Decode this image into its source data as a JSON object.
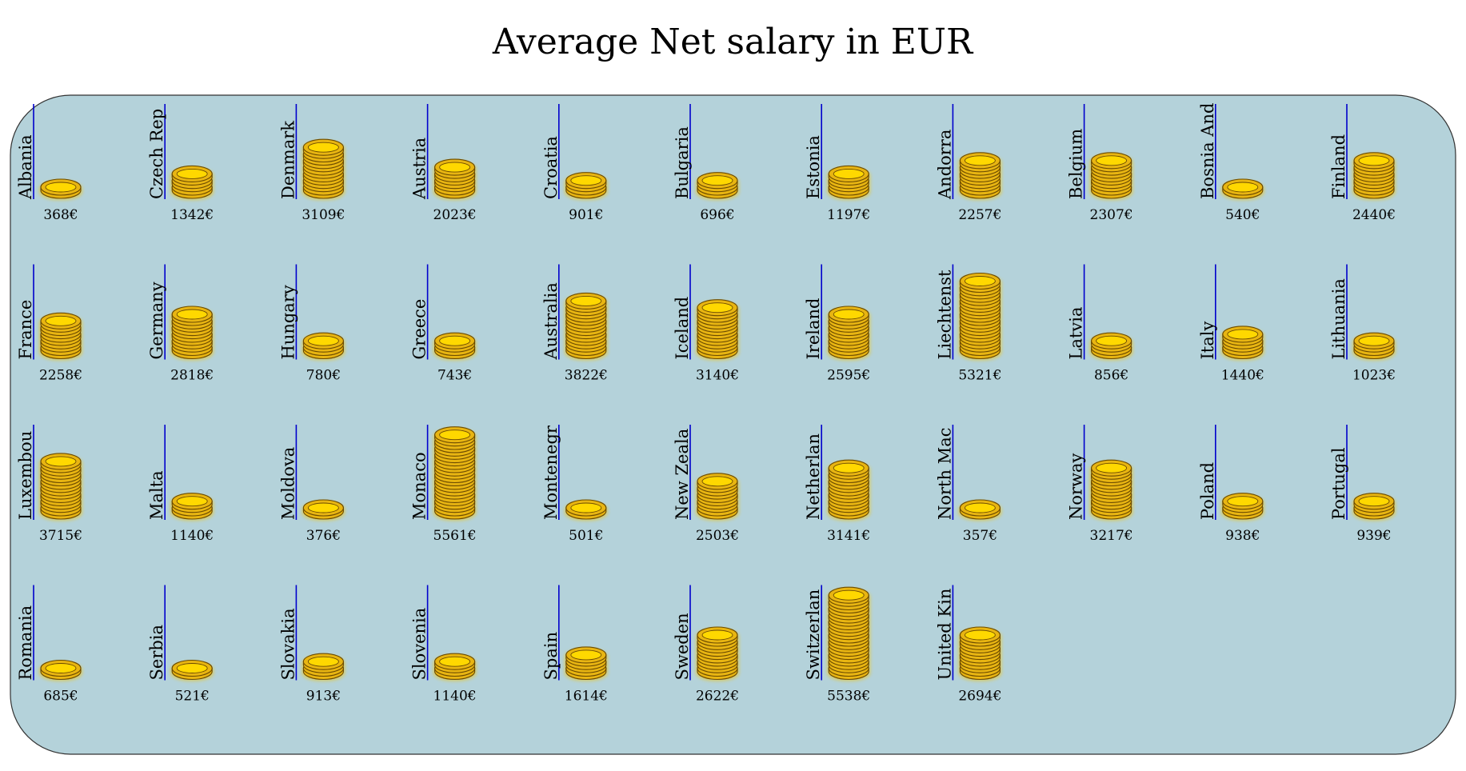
{
  "chart_data": {
    "type": "pictogram",
    "title": "Average Net salary in EUR",
    "value_suffix": "€",
    "columns": 11,
    "colors": {
      "panel": "#b4d2da",
      "panel_border": "#333333",
      "axis_line": "#0000cc",
      "coin_fill": "#e8b512",
      "coin_top": "#ffd800",
      "coin_edge": "#6b4a00",
      "coin_glow": "#f4c400"
    },
    "countries": [
      {
        "name": "Albania",
        "value": 368
      },
      {
        "name": "Czech Rep",
        "value": 1342
      },
      {
        "name": "Denmark",
        "value": 3109
      },
      {
        "name": "Austria",
        "value": 2023
      },
      {
        "name": "Croatia",
        "value": 901
      },
      {
        "name": "Bulgaria",
        "value": 696
      },
      {
        "name": "Estonia",
        "value": 1197
      },
      {
        "name": "Andorra",
        "value": 2257
      },
      {
        "name": "Belgium",
        "value": 2307
      },
      {
        "name": "Bosnia And",
        "value": 540
      },
      {
        "name": "Finland",
        "value": 2440
      },
      {
        "name": "France",
        "value": 2258
      },
      {
        "name": "Germany",
        "value": 2818
      },
      {
        "name": "Hungary",
        "value": 780
      },
      {
        "name": "Greece",
        "value": 743
      },
      {
        "name": "Australia",
        "value": 3822
      },
      {
        "name": "Iceland",
        "value": 3140
      },
      {
        "name": "Ireland",
        "value": 2595
      },
      {
        "name": "Liechtenst",
        "value": 5321
      },
      {
        "name": "Latvia",
        "value": 856
      },
      {
        "name": "Italy",
        "value": 1440
      },
      {
        "name": "Lithuania",
        "value": 1023
      },
      {
        "name": "Luxembou",
        "value": 3715
      },
      {
        "name": "Malta",
        "value": 1140
      },
      {
        "name": "Moldova",
        "value": 376
      },
      {
        "name": "Monaco",
        "value": 5561
      },
      {
        "name": "Montenegr",
        "value": 501
      },
      {
        "name": "New Zeala",
        "value": 2503
      },
      {
        "name": "Netherlan",
        "value": 3141
      },
      {
        "name": "North Mac",
        "value": 357
      },
      {
        "name": "Norway",
        "value": 3217
      },
      {
        "name": "Poland",
        "value": 938
      },
      {
        "name": "Portugal",
        "value": 939
      },
      {
        "name": "Romania",
        "value": 685
      },
      {
        "name": "Serbia",
        "value": 521
      },
      {
        "name": "Slovakia",
        "value": 913
      },
      {
        "name": "Slovenia",
        "value": 1140
      },
      {
        "name": "Spain",
        "value": 1614
      },
      {
        "name": "Sweden",
        "value": 2622
      },
      {
        "name": "Switzerlan",
        "value": 5538
      },
      {
        "name": "United Kin",
        "value": 2694
      }
    ]
  }
}
